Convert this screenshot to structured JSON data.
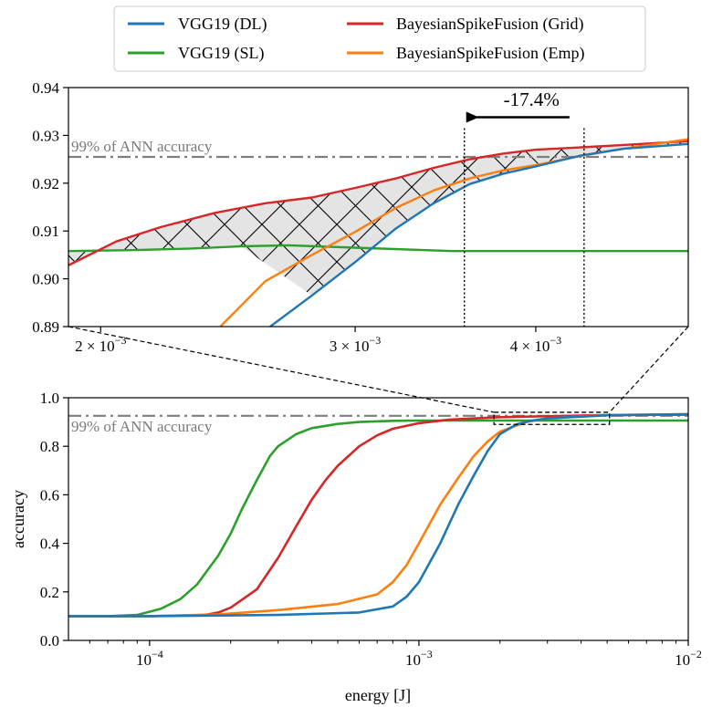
{
  "chart_data": {
    "type": "line",
    "legend": {
      "placement": "top-center",
      "entries": [
        {
          "label": "VGG19 (DL)",
          "color": "#1f77b4"
        },
        {
          "label": "BayesianSpikeFusion (Grid)",
          "color": "#d62728"
        },
        {
          "label": "VGG19 (SL)",
          "color": "#2ca02c"
        },
        {
          "label": "BayesianSpikeFusion (Emp)",
          "color": "#ff7f0e"
        }
      ]
    },
    "reference_line": {
      "label": "99% of ANN accuracy",
      "y": 0.9255,
      "color": "#7f7f7f"
    },
    "annotation": {
      "text": "-17.4%",
      "from_energy": 0.00432,
      "to_energy": 0.00357
    },
    "inset": {
      "xscale": "log",
      "xlim": [
        0.0019,
        0.0051
      ],
      "ylim": [
        0.89,
        0.94
      ],
      "xticks": [
        {
          "value": 0.002,
          "label": "2 × 10",
          "exp": "−3"
        },
        {
          "value": 0.003,
          "label": "3 × 10",
          "exp": "−3"
        },
        {
          "value": 0.004,
          "label": "4 × 10",
          "exp": "−3"
        }
      ],
      "yticks": [
        {
          "value": 0.89,
          "label": "0.89"
        },
        {
          "value": 0.9,
          "label": "0.90"
        },
        {
          "value": 0.91,
          "label": "0.91"
        },
        {
          "value": 0.92,
          "label": "0.92"
        },
        {
          "value": 0.93,
          "label": "0.93"
        },
        {
          "value": 0.94,
          "label": "0.94"
        }
      ],
      "series": [
        {
          "name": "VGG19 (SL)",
          "color": "#2ca02c",
          "x": [
            0.0019,
            0.0021,
            0.0023,
            0.0025,
            0.0027,
            0.003,
            0.0035,
            0.004,
            0.0045,
            0.0051
          ],
          "y": [
            0.9058,
            0.906,
            0.9063,
            0.9068,
            0.907,
            0.9065,
            0.9058,
            0.9058,
            0.9058,
            0.9058
          ]
        },
        {
          "name": "BayesianSpikeFusion (Grid)",
          "color": "#d62728",
          "x": [
            0.0019,
            0.00205,
            0.0022,
            0.0024,
            0.0026,
            0.0028,
            0.003,
            0.0032,
            0.0034,
            0.0036,
            0.0038,
            0.004,
            0.0043,
            0.0046,
            0.0051
          ],
          "y": [
            0.9028,
            0.9078,
            0.9108,
            0.9138,
            0.9158,
            0.917,
            0.919,
            0.921,
            0.9232,
            0.925,
            0.9262,
            0.927,
            0.9275,
            0.928,
            0.9288
          ]
        },
        {
          "name": "BayesianSpikeFusion (Emp)",
          "color": "#ff7f0e",
          "x": [
            0.00242,
            0.0026,
            0.0028,
            0.003,
            0.0032,
            0.0034,
            0.0036,
            0.0038,
            0.004,
            0.0043,
            0.0046,
            0.0051
          ],
          "y": [
            0.89,
            0.8995,
            0.905,
            0.9098,
            0.9148,
            0.9185,
            0.921,
            0.9227,
            0.9238,
            0.9257,
            0.9272,
            0.9292
          ]
        },
        {
          "name": "VGG19 (DL)",
          "color": "#1f77b4",
          "x": [
            0.00262,
            0.0028,
            0.003,
            0.0032,
            0.0034,
            0.0036,
            0.0038,
            0.004,
            0.0043,
            0.0046,
            0.0051
          ],
          "y": [
            0.89,
            0.8965,
            0.9035,
            0.9105,
            0.9158,
            0.9198,
            0.922,
            0.9235,
            0.9258,
            0.9272,
            0.9282
          ]
        }
      ]
    },
    "main": {
      "xscale": "log",
      "xlim": [
        5e-05,
        0.01
      ],
      "ylim": [
        0.0,
        1.0
      ],
      "xlabel": "energy [J]",
      "ylabel": "accuracy",
      "xticks": [
        {
          "value": 0.0001,
          "label": "10",
          "exp": "−4"
        },
        {
          "value": 0.001,
          "label": "10",
          "exp": "−3"
        },
        {
          "value": 0.01,
          "label": "10",
          "exp": "−2"
        }
      ],
      "yticks": [
        {
          "value": 0.0,
          "label": "0.0"
        },
        {
          "value": 0.2,
          "label": "0.2"
        },
        {
          "value": 0.4,
          "label": "0.4"
        },
        {
          "value": 0.6,
          "label": "0.6"
        },
        {
          "value": 0.8,
          "label": "0.8"
        },
        {
          "value": 1.0,
          "label": "1.0"
        }
      ],
      "zoom_box": {
        "x": [
          0.0019,
          0.0051
        ],
        "y": [
          0.89,
          0.94
        ]
      },
      "series": [
        {
          "name": "VGG19 (SL)",
          "color": "#2ca02c",
          "x": [
            5e-05,
            7e-05,
            9e-05,
            0.00011,
            0.00013,
            0.00015,
            0.00018,
            0.0002,
            0.00022,
            0.00025,
            0.00028,
            0.0003,
            0.00035,
            0.0004,
            0.0005,
            0.0006,
            0.0008,
            0.001,
            0.002,
            0.005,
            0.01
          ],
          "y": [
            0.1,
            0.1,
            0.105,
            0.13,
            0.17,
            0.23,
            0.35,
            0.44,
            0.54,
            0.66,
            0.76,
            0.8,
            0.85,
            0.875,
            0.892,
            0.9,
            0.905,
            0.906,
            0.906,
            0.906,
            0.906
          ]
        },
        {
          "name": "BayesianSpikeFusion (Grid)",
          "color": "#d62728",
          "x": [
            5e-05,
            0.0001,
            0.00016,
            0.00018,
            0.0002,
            0.00025,
            0.0003,
            0.00035,
            0.0004,
            0.00045,
            0.0005,
            0.0006,
            0.0007,
            0.0008,
            0.001,
            0.0013,
            0.002,
            0.005,
            0.01
          ],
          "y": [
            0.1,
            0.1,
            0.105,
            0.115,
            0.135,
            0.21,
            0.34,
            0.47,
            0.58,
            0.66,
            0.72,
            0.8,
            0.845,
            0.872,
            0.895,
            0.91,
            0.92,
            0.929,
            0.93
          ]
        },
        {
          "name": "BayesianSpikeFusion (Emp)",
          "color": "#ff7f0e",
          "x": [
            5e-05,
            0.0001,
            0.00018,
            0.0003,
            0.0005,
            0.0007,
            0.0008,
            0.0009,
            0.001,
            0.0012,
            0.0014,
            0.0016,
            0.0018,
            0.002,
            0.0025,
            0.003,
            0.005,
            0.01
          ],
          "y": [
            0.1,
            0.1,
            0.107,
            0.125,
            0.15,
            0.19,
            0.24,
            0.31,
            0.4,
            0.56,
            0.67,
            0.76,
            0.82,
            0.86,
            0.9,
            0.915,
            0.929,
            0.932
          ]
        },
        {
          "name": "VGG19 (DL)",
          "color": "#1f77b4",
          "x": [
            5e-05,
            0.0001,
            0.0003,
            0.0006,
            0.0008,
            0.0009,
            0.001,
            0.0012,
            0.0014,
            0.0016,
            0.0018,
            0.002,
            0.0023,
            0.0026,
            0.003,
            0.005,
            0.01
          ],
          "y": [
            0.1,
            0.1,
            0.105,
            0.115,
            0.14,
            0.18,
            0.24,
            0.4,
            0.56,
            0.68,
            0.78,
            0.85,
            0.89,
            0.905,
            0.915,
            0.928,
            0.932
          ]
        }
      ]
    }
  }
}
